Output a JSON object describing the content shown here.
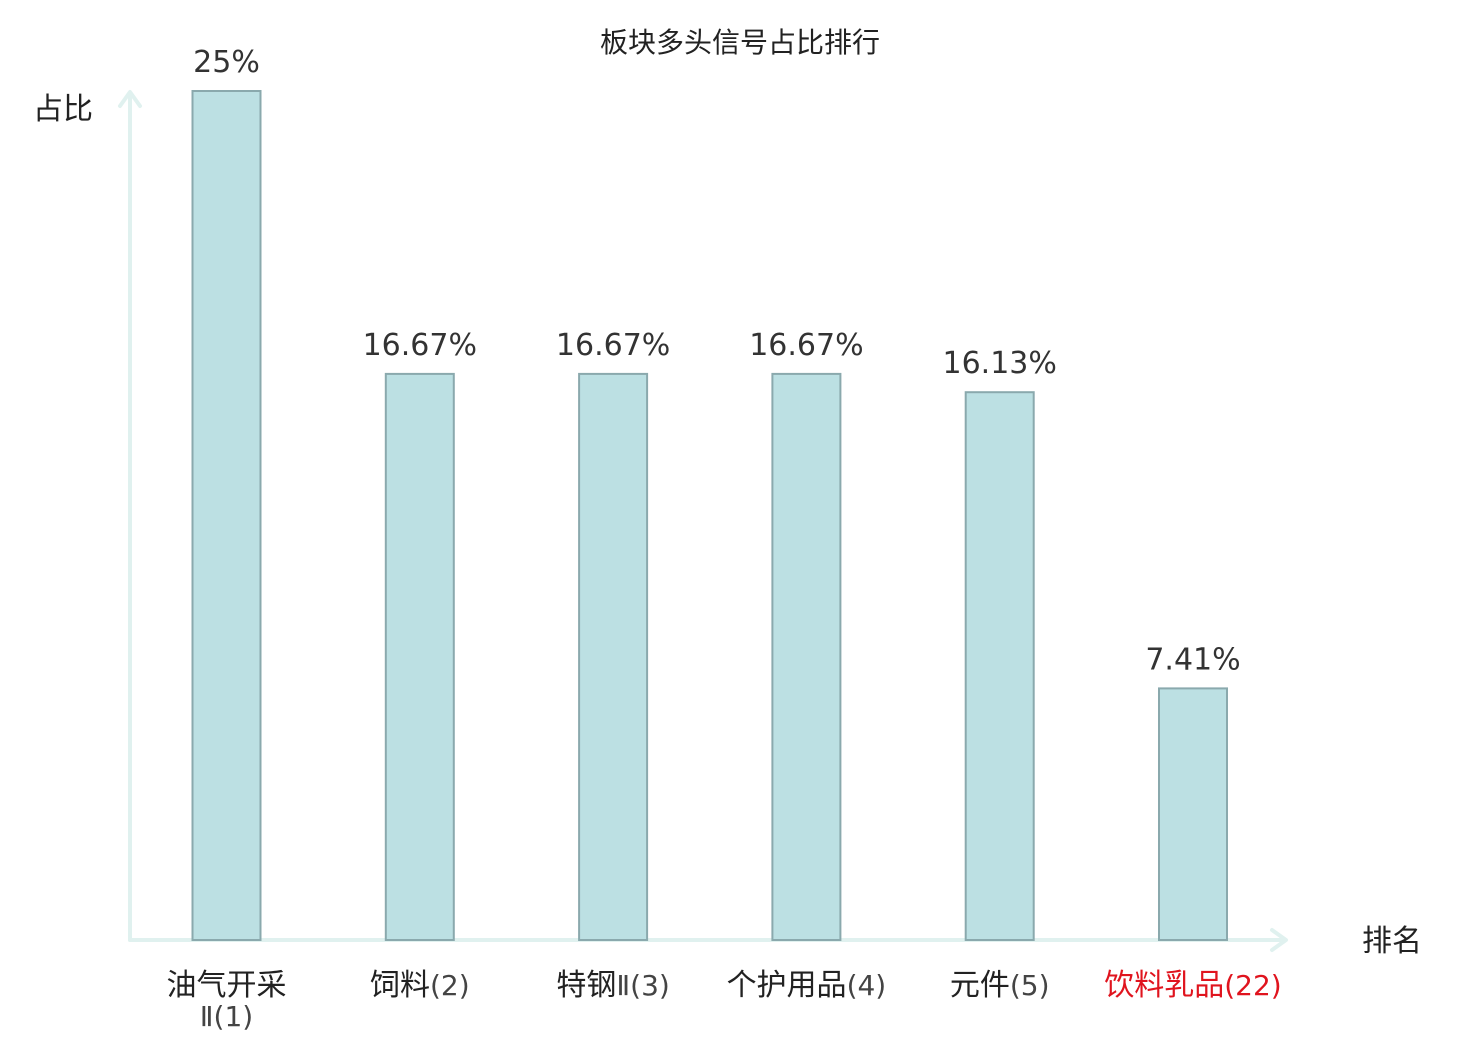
{
  "chart_data": {
    "type": "bar",
    "title": "板块多头信号占比排行",
    "ylabel": "占比",
    "xlabel": "排名",
    "ylim": [
      0,
      25
    ],
    "grid": false,
    "categories": [
      {
        "name": "油气开采",
        "rank": "Ⅱ(1)",
        "wrap": true
      },
      {
        "name": "饲料",
        "rank": "(2)",
        "wrap": false
      },
      {
        "name": "特钢",
        "rank": "Ⅱ(3)",
        "wrap": false
      },
      {
        "name": "个护用品",
        "rank": "(4)",
        "wrap": false
      },
      {
        "name": "元件",
        "rank": "(5)",
        "wrap": false
      },
      {
        "name": "饮料乳品",
        "rank": "(22)",
        "wrap": false
      }
    ],
    "values": [
      25,
      16.67,
      16.67,
      16.67,
      16.13,
      7.41
    ],
    "value_labels": [
      "25%",
      "16.67%",
      "16.67%",
      "16.67%",
      "16.13%",
      "7.41%"
    ],
    "highlight_index": 5
  },
  "colors": {
    "bar_fill": "#bce0e3",
    "bar_stroke": "#8aa9ad",
    "axis": "#e0f1ef",
    "text": "#222222",
    "rank_text": "#444444",
    "highlight": "#e0141e"
  }
}
